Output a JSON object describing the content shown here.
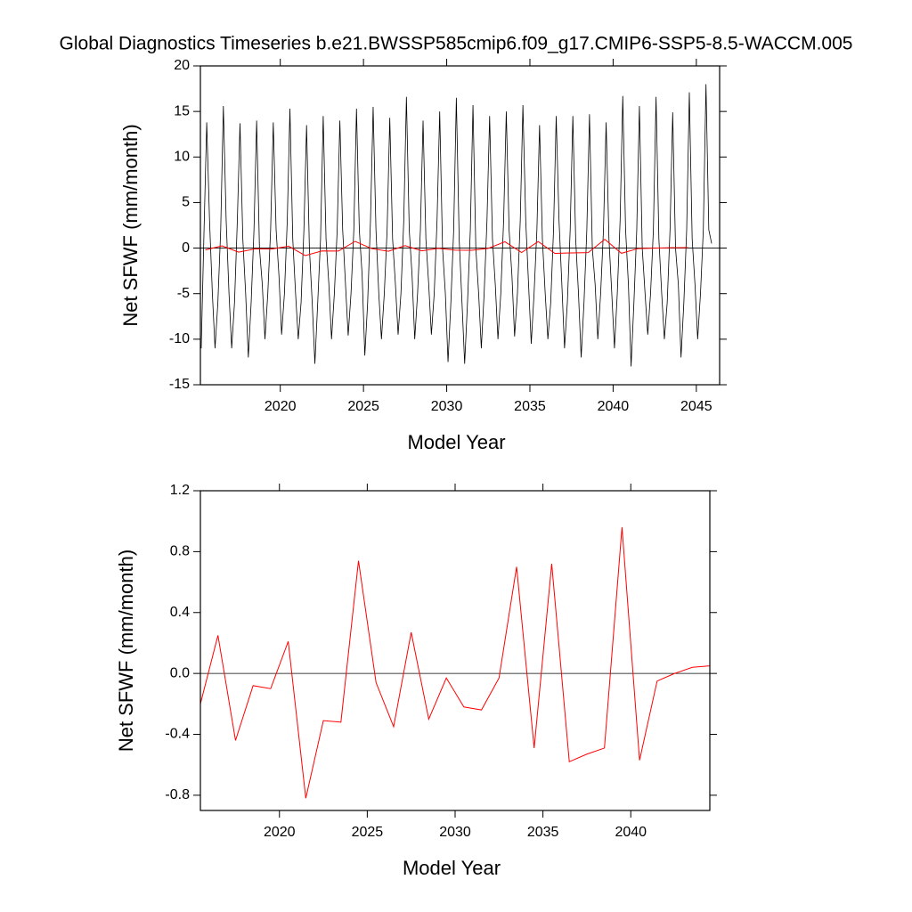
{
  "chart_data": [
    {
      "type": "line",
      "title": "Global Diagnostics Timeseries b.e21.BWSSP585cmip6.f09_g17.CMIP6-SSP5-8.5-WACCM.005",
      "xlabel": "Model Year",
      "ylabel": "Net SFWF (mm/month)",
      "xlim": [
        2015.2,
        2046.4
      ],
      "xticks": [
        2020,
        2025,
        2030,
        2035,
        2040,
        2045
      ],
      "ylim": [
        -15,
        20
      ],
      "yticks": [
        -15,
        -10,
        -5,
        0,
        5,
        10,
        15,
        20
      ],
      "series": [
        {
          "color": "#000000",
          "x": [
            2015.25,
            2015.42,
            2015.58,
            2015.75,
            2015.92,
            2016.08,
            2016.25,
            2016.42,
            2016.58,
            2016.75,
            2016.92,
            2017.08,
            2017.25,
            2017.42,
            2017.58,
            2017.75,
            2017.92,
            2018.08,
            2018.25,
            2018.42,
            2018.58,
            2018.75,
            2018.92,
            2019.08,
            2019.25,
            2019.42,
            2019.58,
            2019.75,
            2019.92,
            2020.08,
            2020.25,
            2020.42,
            2020.58,
            2020.75,
            2020.92,
            2021.08,
            2021.25,
            2021.42,
            2021.58,
            2021.75,
            2021.92,
            2022.08,
            2022.25,
            2022.42,
            2022.58,
            2022.75,
            2022.92,
            2023.08,
            2023.25,
            2023.42,
            2023.58,
            2023.75,
            2023.92,
            2024.08,
            2024.25,
            2024.42,
            2024.58,
            2024.75,
            2024.92,
            2025.08,
            2025.25,
            2025.42,
            2025.58,
            2025.75,
            2025.92,
            2026.08,
            2026.25,
            2026.42,
            2026.58,
            2026.75,
            2026.92,
            2027.08,
            2027.25,
            2027.42,
            2027.58,
            2027.75,
            2027.92,
            2028.08,
            2028.25,
            2028.42,
            2028.58,
            2028.75,
            2028.92,
            2029.08,
            2029.25,
            2029.42,
            2029.58,
            2029.75,
            2029.92,
            2030.08,
            2030.25,
            2030.42,
            2030.58,
            2030.75,
            2030.92,
            2031.08,
            2031.25,
            2031.42,
            2031.58,
            2031.75,
            2031.92,
            2032.08,
            2032.25,
            2032.42,
            2032.58,
            2032.75,
            2032.92,
            2033.08,
            2033.25,
            2033.42,
            2033.58,
            2033.75,
            2033.92,
            2034.08,
            2034.25,
            2034.42,
            2034.58,
            2034.75,
            2034.92,
            2035.08,
            2035.25,
            2035.42,
            2035.58,
            2035.75,
            2035.92,
            2036.08,
            2036.25,
            2036.42,
            2036.58,
            2036.75,
            2036.92,
            2037.08,
            2037.25,
            2037.42,
            2037.58,
            2037.75,
            2037.92,
            2038.08,
            2038.25,
            2038.42,
            2038.58,
            2038.75,
            2038.92,
            2039.08,
            2039.25,
            2039.42,
            2039.58,
            2039.75,
            2039.92,
            2040.08,
            2040.25,
            2040.42,
            2040.58,
            2040.75,
            2040.92,
            2041.08,
            2041.25,
            2041.42,
            2041.58,
            2041.75,
            2041.92,
            2042.08,
            2042.25,
            2042.42,
            2042.58,
            2042.75,
            2042.92,
            2043.08,
            2043.25,
            2043.42,
            2043.58,
            2043.75,
            2043.92,
            2044.08,
            2044.25,
            2044.42,
            2044.58,
            2044.75,
            2044.92,
            2045.08,
            2045.25,
            2045.42,
            2045.58,
            2045.75,
            2045.92
          ],
          "values": [
            -11,
            2,
            13.8,
            3,
            -5,
            -11,
            -6,
            2,
            15.6,
            3,
            -5,
            -11,
            -6,
            3,
            13.7,
            1,
            -5,
            -12,
            -6,
            2,
            14,
            0,
            -4,
            -10,
            -5,
            2,
            13.8,
            2,
            -3,
            -9.5,
            -5,
            3,
            15.3,
            1,
            -5,
            -10,
            -6,
            2,
            13.5,
            0,
            -6,
            -12.7,
            -6,
            1,
            14.5,
            1,
            -4,
            -10,
            -5,
            2,
            14,
            2,
            -4,
            -9.6,
            -5,
            2,
            15.3,
            2,
            -3,
            -11.8,
            -6,
            3,
            15.5,
            2,
            -5,
            -10,
            -5,
            2,
            14.3,
            1,
            -4,
            -9.5,
            -5,
            3,
            16.6,
            2,
            -3,
            -10,
            -5,
            2,
            14,
            1,
            -4,
            -9.5,
            -5,
            3,
            15,
            0,
            -5,
            -12.5,
            -6,
            2,
            16.5,
            1,
            -6,
            -12.7,
            -6,
            2,
            15.7,
            0,
            -5,
            -11,
            -5,
            3,
            14.5,
            1,
            -4,
            -10,
            -5,
            3,
            15,
            2,
            -3,
            -9.7,
            -5,
            3,
            15.7,
            3,
            -4,
            -10.5,
            -5,
            2,
            13.5,
            1,
            -5,
            -10,
            -6,
            2,
            14.5,
            3,
            -4,
            -11,
            -6,
            2,
            14.5,
            1,
            -5,
            -12,
            -6,
            2,
            14.7,
            0,
            -4,
            -10,
            -5,
            2,
            13.8,
            1,
            -5,
            -11,
            -5,
            3,
            16.7,
            2,
            -4,
            -13,
            -6,
            2,
            15.6,
            0,
            -5,
            -9.5,
            -5,
            2,
            16.6,
            1,
            -5,
            -10,
            -6,
            2,
            14.9,
            0,
            -4,
            -12,
            -6,
            2,
            17.1,
            1,
            -4,
            -10,
            -5,
            2,
            18,
            2,
            0.5
          ]
        },
        {
          "color": "#ff0000",
          "x": [
            2015.5,
            2016.5,
            2017.5,
            2018.5,
            2019.5,
            2020.5,
            2021.5,
            2022.5,
            2023.5,
            2024.5,
            2025.5,
            2026.5,
            2027.5,
            2028.5,
            2029.5,
            2030.5,
            2031.5,
            2032.5,
            2033.5,
            2034.5,
            2035.5,
            2036.5,
            2037.5,
            2038.5,
            2039.5,
            2040.5,
            2041.5,
            2042.5,
            2043.5,
            2044.5
          ],
          "values": [
            -0.2,
            0.25,
            -0.44,
            -0.08,
            -0.1,
            0.21,
            -0.82,
            -0.31,
            -0.32,
            0.74,
            -0.06,
            -0.35,
            0.27,
            -0.3,
            -0.03,
            -0.22,
            -0.24,
            -0.03,
            0.7,
            -0.49,
            0.72,
            -0.58,
            -0.53,
            -0.49,
            0.96,
            -0.57,
            -0.05,
            0,
            0.04,
            0.05
          ]
        }
      ]
    },
    {
      "type": "line",
      "xlabel": "Model Year",
      "ylabel": "Net SFWF (mm/month)",
      "xlim": [
        2015.5,
        2044.5
      ],
      "xticks": [
        2020,
        2025,
        2030,
        2035,
        2040
      ],
      "ylim": [
        -0.9,
        1.2
      ],
      "yticks": [
        -0.8,
        -0.4,
        {
          "value": 0,
          "label": "0.0"
        },
        0.4,
        0.8,
        1.2
      ],
      "series": [
        {
          "color": "#ff0000",
          "x": [
            2015.5,
            2016.5,
            2017.5,
            2018.5,
            2019.5,
            2020.5,
            2021.5,
            2022.5,
            2023.5,
            2024.5,
            2025.5,
            2026.5,
            2027.5,
            2028.5,
            2029.5,
            2030.5,
            2031.5,
            2032.5,
            2033.5,
            2034.5,
            2035.5,
            2036.5,
            2037.5,
            2038.5,
            2039.5,
            2040.5,
            2041.5,
            2042.5,
            2043.5,
            2044.5
          ],
          "values": [
            -0.2,
            0.25,
            -0.44,
            -0.08,
            -0.1,
            0.21,
            -0.82,
            -0.31,
            -0.32,
            0.74,
            -0.06,
            -0.35,
            0.27,
            -0.3,
            -0.03,
            -0.22,
            -0.24,
            -0.03,
            0.7,
            -0.49,
            0.72,
            -0.58,
            -0.53,
            -0.49,
            0.96,
            -0.57,
            -0.05,
            0,
            0.04,
            0.05
          ]
        }
      ]
    }
  ]
}
